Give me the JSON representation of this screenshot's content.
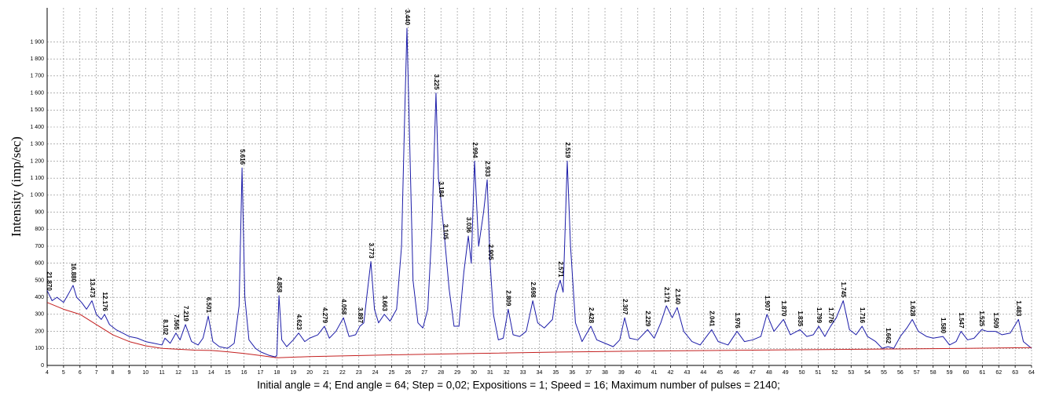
{
  "chart_data": {
    "type": "line",
    "ylabel": "Intensity (imp/sec)",
    "footer": "Initial angle = 4; End angle = 64; Step = 0,02; Expositions = 1; Speed = 16; Maximum number of pulses = 2140;",
    "xlim": [
      4,
      64
    ],
    "ylim": [
      0,
      2100
    ],
    "grid": true,
    "xticks": [
      4,
      5,
      6,
      7,
      8,
      9,
      10,
      11,
      12,
      13,
      14,
      15,
      16,
      17,
      18,
      19,
      20,
      21,
      22,
      23,
      24,
      25,
      26,
      27,
      28,
      29,
      30,
      31,
      32,
      33,
      34,
      35,
      36,
      37,
      38,
      39,
      40,
      41,
      42,
      43,
      44,
      45,
      46,
      47,
      48,
      49,
      50,
      51,
      52,
      53,
      54,
      55,
      56,
      57,
      58,
      59,
      60,
      61,
      62,
      63,
      64
    ],
    "yticks": [
      0,
      100,
      200,
      300,
      400,
      500,
      600,
      700,
      800,
      900,
      {
        "value": 1000,
        "label": "1 000"
      },
      {
        "value": 1100,
        "label": "1 100"
      },
      {
        "value": 1200,
        "label": "1 200"
      },
      {
        "value": 1300,
        "label": "1 300"
      },
      {
        "value": 1400,
        "label": "1 400"
      },
      {
        "value": 1500,
        "label": "1 500"
      },
      {
        "value": 1600,
        "label": "1 600"
      },
      {
        "value": 1700,
        "label": "1 700"
      },
      {
        "value": 1800,
        "label": "1 800"
      },
      {
        "value": 1900,
        "label": "1 900"
      }
    ],
    "series": [
      {
        "color": "#1c1ca8",
        "x": [
          4,
          4.1,
          4.3,
          4.6,
          5,
          5.3,
          5.58,
          5.8,
          6.1,
          6.4,
          6.73,
          7,
          7.3,
          7.5,
          7.8,
          8.2,
          8.6,
          9,
          9.5,
          10,
          10.5,
          11,
          11.18,
          11.5,
          11.85,
          12.1,
          12.43,
          12.8,
          13.2,
          13.5,
          13.82,
          14.1,
          14.5,
          15,
          15.4,
          15.7,
          15.88,
          16.05,
          16.3,
          16.7,
          17,
          17.5,
          17.9,
          18.0,
          18.13,
          18.3,
          18.6,
          19,
          19.33,
          19.7,
          20,
          20.5,
          20.9,
          21.2,
          21.6,
          22.06,
          22.4,
          22.8,
          23.06,
          23.3,
          23.5,
          23.73,
          23.95,
          24.2,
          24.55,
          24.9,
          25.3,
          25.6,
          25.8,
          25.93,
          26.1,
          26.3,
          26.6,
          26.9,
          27.2,
          27.45,
          27.7,
          27.85,
          28.0,
          28.25,
          28.5,
          28.8,
          29.1,
          29.4,
          29.67,
          29.85,
          30.05,
          30.3,
          30.6,
          30.82,
          31.0,
          31.2,
          31.5,
          31.8,
          32.1,
          32.4,
          32.8,
          33.2,
          33.6,
          33.9,
          34.3,
          34.8,
          35.0,
          35.27,
          35.45,
          35.7,
          35.9,
          36.2,
          36.6,
          37.14,
          37.5,
          38,
          38.5,
          38.9,
          39.2,
          39.5,
          40,
          40.6,
          41,
          41.4,
          41.74,
          42.1,
          42.4,
          42.8,
          43.3,
          43.8,
          44.5,
          44.9,
          45.5,
          46.05,
          46.5,
          47,
          47.5,
          47.87,
          48.3,
          48.88,
          49.3,
          49.88,
          50.3,
          50.7,
          51.03,
          51.4,
          51.75,
          52.1,
          52.52,
          52.9,
          53.3,
          53.67,
          54,
          54.5,
          54.9,
          55.25,
          55.6,
          56,
          56.4,
          56.73,
          57.1,
          57.6,
          58,
          58.6,
          59,
          59.4,
          59.7,
          60.1,
          60.5,
          60.95,
          61.3,
          61.8,
          62.2,
          62.7,
          63.2,
          63.5,
          64
        ],
        "values": [
          440,
          420,
          380,
          400,
          370,
          420,
          470,
          400,
          370,
          330,
          380,
          300,
          270,
          300,
          240,
          210,
          190,
          170,
          160,
          140,
          130,
          120,
          160,
          130,
          190,
          150,
          240,
          140,
          120,
          160,
          290,
          140,
          110,
          100,
          130,
          350,
          1160,
          400,
          150,
          100,
          80,
          60,
          50,
          60,
          410,
          150,
          110,
          150,
          190,
          140,
          160,
          180,
          230,
          160,
          200,
          280,
          170,
          180,
          230,
          250,
          420,
          610,
          330,
          250,
          300,
          260,
          330,
          700,
          1500,
          1980,
          1300,
          500,
          250,
          220,
          330,
          800,
          1600,
          1100,
          970,
          720,
          450,
          230,
          230,
          550,
          760,
          600,
          1200,
          700,
          900,
          1090,
          600,
          300,
          150,
          160,
          330,
          180,
          170,
          200,
          380,
          250,
          220,
          270,
          420,
          500,
          430,
          1200,
          700,
          250,
          140,
          230,
          150,
          130,
          110,
          150,
          280,
          160,
          150,
          210,
          160,
          250,
          350,
          280,
          340,
          200,
          140,
          120,
          210,
          140,
          120,
          200,
          140,
          150,
          170,
          300,
          200,
          270,
          180,
          210,
          170,
          180,
          230,
          170,
          230,
          280,
          380,
          210,
          180,
          230,
          170,
          140,
          100,
          110,
          100,
          170,
          220,
          270,
          200,
          170,
          160,
          170,
          120,
          140,
          200,
          150,
          160,
          210,
          200,
          200,
          180,
          190,
          270,
          140,
          100
        ]
      },
      {
        "color": "#c42020",
        "x": [
          4,
          5,
          6,
          7,
          8,
          9,
          10,
          11,
          12,
          13,
          14,
          15,
          16,
          17,
          18,
          20,
          25,
          30,
          35,
          40,
          45,
          50,
          55,
          60,
          64
        ],
        "values": [
          370,
          330,
          300,
          240,
          180,
          140,
          115,
          100,
          95,
          90,
          88,
          80,
          70,
          58,
          45,
          52,
          62,
          70,
          78,
          84,
          88,
          92,
          96,
          100,
          105
        ]
      }
    ],
    "annotations": [
      {
        "x": 4.1,
        "y": 420,
        "label": "21.870"
      },
      {
        "x": 5.58,
        "y": 470,
        "label": "16.880"
      },
      {
        "x": 6.73,
        "y": 380,
        "label": "13.473"
      },
      {
        "x": 7.5,
        "y": 300,
        "label": "12.176"
      },
      {
        "x": 11.18,
        "y": 160,
        "label": "8.102"
      },
      {
        "x": 11.85,
        "y": 190,
        "label": "7.565"
      },
      {
        "x": 12.43,
        "y": 240,
        "label": "7.219"
      },
      {
        "x": 13.82,
        "y": 290,
        "label": "6.501"
      },
      {
        "x": 15.88,
        "y": 1160,
        "label": "5.616"
      },
      {
        "x": 18.13,
        "y": 410,
        "label": "4.858"
      },
      {
        "x": 19.33,
        "y": 190,
        "label": "4.623"
      },
      {
        "x": 20.9,
        "y": 230,
        "label": "4.279"
      },
      {
        "x": 22.06,
        "y": 280,
        "label": "4.058"
      },
      {
        "x": 23.06,
        "y": 230,
        "label": "3.897"
      },
      {
        "x": 23.73,
        "y": 610,
        "label": "3.773"
      },
      {
        "x": 24.55,
        "y": 300,
        "label": "3.663"
      },
      {
        "x": 25.93,
        "y": 1980,
        "label": "3.440"
      },
      {
        "x": 27.7,
        "y": 1600,
        "label": "3.225"
      },
      {
        "x": 28.0,
        "y": 970,
        "label": "3.184"
      },
      {
        "x": 28.25,
        "y": 720,
        "label": "3.105"
      },
      {
        "x": 29.67,
        "y": 760,
        "label": "3.036"
      },
      {
        "x": 30.05,
        "y": 1200,
        "label": "2.994"
      },
      {
        "x": 30.82,
        "y": 1090,
        "label": "2.933"
      },
      {
        "x": 31.0,
        "y": 600,
        "label": "2.905"
      },
      {
        "x": 32.1,
        "y": 330,
        "label": "2.809"
      },
      {
        "x": 33.6,
        "y": 380,
        "label": "2.698"
      },
      {
        "x": 35.27,
        "y": 500,
        "label": "2.571"
      },
      {
        "x": 35.7,
        "y": 1200,
        "label": "2.519"
      },
      {
        "x": 37.14,
        "y": 230,
        "label": "2.428"
      },
      {
        "x": 39.2,
        "y": 280,
        "label": "2.307"
      },
      {
        "x": 40.6,
        "y": 210,
        "label": "2.229"
      },
      {
        "x": 41.74,
        "y": 350,
        "label": "2.171"
      },
      {
        "x": 42.4,
        "y": 340,
        "label": "2.140"
      },
      {
        "x": 44.5,
        "y": 210,
        "label": "2.041"
      },
      {
        "x": 46.05,
        "y": 200,
        "label": "1.976"
      },
      {
        "x": 47.87,
        "y": 300,
        "label": "1.907"
      },
      {
        "x": 48.88,
        "y": 270,
        "label": "1.870"
      },
      {
        "x": 49.88,
        "y": 210,
        "label": "1.835"
      },
      {
        "x": 51.03,
        "y": 230,
        "label": "1.799"
      },
      {
        "x": 51.75,
        "y": 230,
        "label": "1.776"
      },
      {
        "x": 52.52,
        "y": 380,
        "label": "1.745"
      },
      {
        "x": 53.67,
        "y": 230,
        "label": "1.716"
      },
      {
        "x": 55.25,
        "y": 110,
        "label": "1.662"
      },
      {
        "x": 56.73,
        "y": 270,
        "label": "1.628"
      },
      {
        "x": 58.6,
        "y": 170,
        "label": "1.580"
      },
      {
        "x": 59.7,
        "y": 200,
        "label": "1.547"
      },
      {
        "x": 60.95,
        "y": 210,
        "label": "1.525"
      },
      {
        "x": 61.8,
        "y": 200,
        "label": "1.509"
      },
      {
        "x": 63.2,
        "y": 270,
        "label": "1.483"
      }
    ]
  }
}
